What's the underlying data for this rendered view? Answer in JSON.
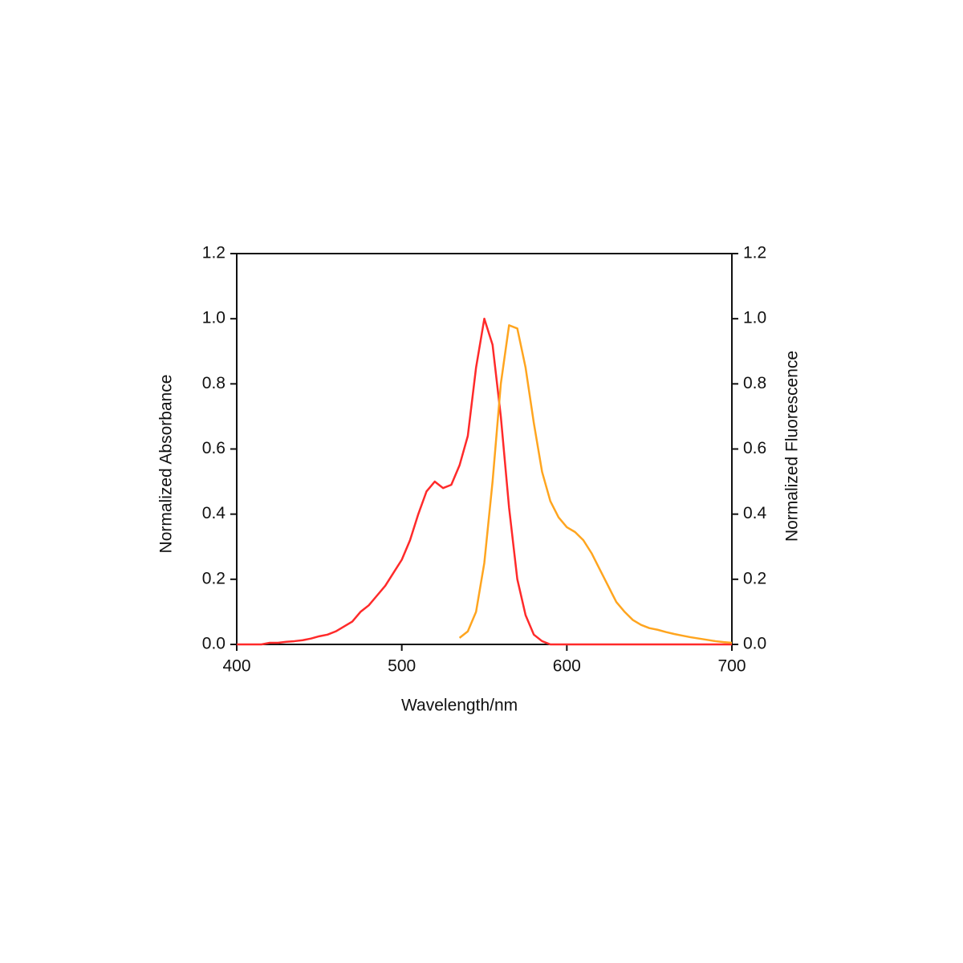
{
  "chart_data": {
    "type": "line",
    "x_label": "Wavelength/nm",
    "y_label": "Normalized Absorbance",
    "y2_label": "Normalized Fluorescence",
    "x": [
      400,
      405,
      410,
      415,
      420,
      425,
      430,
      435,
      440,
      445,
      450,
      455,
      460,
      465,
      470,
      475,
      480,
      485,
      490,
      495,
      500,
      505,
      510,
      515,
      520,
      525,
      530,
      535,
      540,
      545,
      550,
      555,
      560,
      565,
      570,
      575,
      580,
      585,
      590,
      595,
      600,
      605,
      610,
      615,
      620,
      625,
      630,
      635,
      640,
      645,
      650,
      655,
      660,
      665,
      670,
      675,
      680,
      685,
      690,
      695,
      700
    ],
    "series": [
      {
        "color": "#ff2a2a",
        "values": [
          0,
          0,
          0,
          0,
          0.005,
          0.005,
          0.008,
          0.01,
          0.013,
          0.018,
          0.025,
          0.03,
          0.04,
          0.055,
          0.07,
          0.1,
          0.12,
          0.15,
          0.18,
          0.22,
          0.26,
          0.32,
          0.4,
          0.47,
          0.5,
          0.48,
          0.49,
          0.55,
          0.64,
          0.85,
          1.0,
          0.92,
          0.7,
          0.42,
          0.2,
          0.09,
          0.03,
          0.01,
          0,
          0,
          0,
          0,
          0,
          0,
          0,
          0,
          0,
          0,
          0,
          0,
          0,
          0,
          0,
          0,
          0,
          0,
          0,
          0,
          0,
          0,
          0
        ]
      },
      {
        "color": "#ffa51f",
        "axis": "y2",
        "values": [
          null,
          null,
          null,
          null,
          null,
          null,
          null,
          null,
          null,
          null,
          null,
          null,
          null,
          null,
          null,
          null,
          null,
          null,
          null,
          null,
          null,
          null,
          null,
          null,
          null,
          null,
          null,
          0.02,
          0.04,
          0.1,
          0.25,
          0.5,
          0.8,
          0.98,
          0.97,
          0.85,
          0.68,
          0.53,
          0.44,
          0.39,
          0.36,
          0.345,
          0.32,
          0.28,
          0.23,
          0.18,
          0.13,
          0.1,
          0.075,
          0.06,
          0.05,
          0.045,
          0.038,
          0.032,
          0.027,
          0.022,
          0.018,
          0.014,
          0.01,
          0.007,
          0.005
        ]
      }
    ],
    "xlim": [
      400,
      700
    ],
    "xticks": [
      400,
      500,
      600,
      700
    ],
    "ylim": [
      0,
      1.2
    ],
    "yticks": [
      {
        "value": 0,
        "label": "0.0"
      },
      0.2,
      0.4,
      0.6,
      0.8,
      {
        "value": 1,
        "label": "1.0"
      },
      1.2
    ],
    "y2lim": [
      0,
      1.2
    ],
    "y2ticks": [
      {
        "value": 0,
        "label": "0.0"
      },
      0.2,
      0.4,
      0.6,
      0.8,
      {
        "value": 1,
        "label": "1.0"
      },
      1.2
    ]
  }
}
